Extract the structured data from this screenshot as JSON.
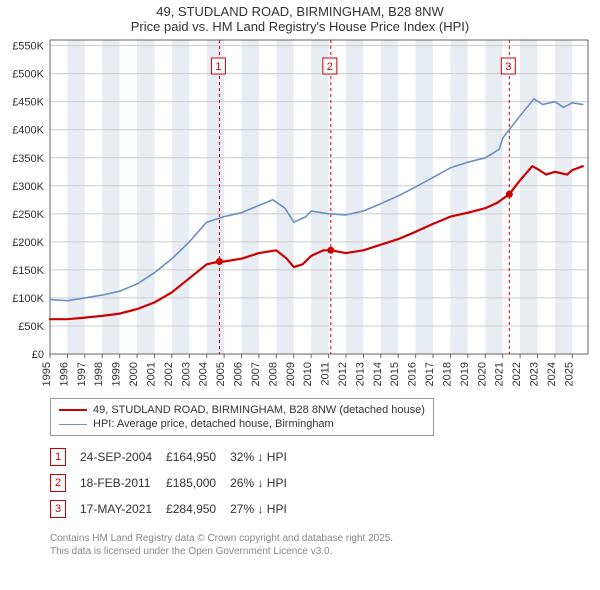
{
  "title": "49, STUDLAND ROAD, BIRMINGHAM, B28 8NW",
  "subtitle": "Price paid vs. HM Land Registry's House Price Index (HPI)",
  "chart": {
    "type": "line",
    "background_color": "#ffffff",
    "grid_color": "#cccccc",
    "band_color": "#e8edf3",
    "x_years": [
      1995,
      1996,
      1997,
      1998,
      1999,
      2000,
      2001,
      2002,
      2003,
      2004,
      2005,
      2006,
      2007,
      2008,
      2009,
      2010,
      2011,
      2012,
      2013,
      2014,
      2015,
      2016,
      2017,
      2018,
      2019,
      2020,
      2021,
      2022,
      2023,
      2024,
      2025
    ],
    "xlim": [
      1995,
      2025.9
    ],
    "ylim": [
      0,
      560000
    ],
    "ytick_step": 50000,
    "ytick_labels": [
      "£0",
      "£50K",
      "£100K",
      "£150K",
      "£200K",
      "£250K",
      "£300K",
      "£350K",
      "£400K",
      "£450K",
      "£500K",
      "£550K"
    ],
    "series": [
      {
        "name": "49, STUDLAND ROAD, BIRMINGHAM, B28 8NW (detached house)",
        "color": "#cc0000",
        "width": 2.2,
        "data": [
          [
            1995,
            62000
          ],
          [
            1996,
            62000
          ],
          [
            1997,
            65000
          ],
          [
            1998,
            68000
          ],
          [
            1999,
            72000
          ],
          [
            2000,
            80000
          ],
          [
            2001,
            92000
          ],
          [
            2002,
            110000
          ],
          [
            2003,
            135000
          ],
          [
            2004,
            160000
          ],
          [
            2004.73,
            164950
          ],
          [
            2005,
            165000
          ],
          [
            2006,
            170000
          ],
          [
            2007,
            180000
          ],
          [
            2008,
            185000
          ],
          [
            2008.6,
            170000
          ],
          [
            2009,
            155000
          ],
          [
            2009.5,
            160000
          ],
          [
            2010,
            175000
          ],
          [
            2010.7,
            185000
          ],
          [
            2011.13,
            185000
          ],
          [
            2012,
            180000
          ],
          [
            2013,
            185000
          ],
          [
            2014,
            195000
          ],
          [
            2015,
            205000
          ],
          [
            2016,
            218000
          ],
          [
            2017,
            232000
          ],
          [
            2018,
            245000
          ],
          [
            2019,
            252000
          ],
          [
            2020,
            260000
          ],
          [
            2020.7,
            270000
          ],
          [
            2021.38,
            284950
          ],
          [
            2022,
            310000
          ],
          [
            2022.7,
            335000
          ],
          [
            2023,
            330000
          ],
          [
            2023.5,
            320000
          ],
          [
            2024,
            325000
          ],
          [
            2024.7,
            320000
          ],
          [
            2025,
            328000
          ],
          [
            2025.6,
            335000
          ]
        ]
      },
      {
        "name": "HPI: Average price, detached house, Birmingham",
        "color": "#6a8fc5",
        "width": 1.6,
        "data": [
          [
            1995,
            97000
          ],
          [
            1996,
            95000
          ],
          [
            1997,
            100000
          ],
          [
            1998,
            105000
          ],
          [
            1999,
            112000
          ],
          [
            2000,
            125000
          ],
          [
            2001,
            145000
          ],
          [
            2002,
            170000
          ],
          [
            2003,
            200000
          ],
          [
            2004,
            235000
          ],
          [
            2005,
            245000
          ],
          [
            2006,
            252000
          ],
          [
            2007,
            265000
          ],
          [
            2007.8,
            275000
          ],
          [
            2008.5,
            260000
          ],
          [
            2009,
            235000
          ],
          [
            2009.7,
            245000
          ],
          [
            2010,
            255000
          ],
          [
            2011,
            250000
          ],
          [
            2012,
            248000
          ],
          [
            2013,
            255000
          ],
          [
            2014,
            268000
          ],
          [
            2015,
            282000
          ],
          [
            2016,
            298000
          ],
          [
            2017,
            315000
          ],
          [
            2018,
            332000
          ],
          [
            2019,
            342000
          ],
          [
            2020,
            350000
          ],
          [
            2020.8,
            365000
          ],
          [
            2021,
            385000
          ],
          [
            2022,
            425000
          ],
          [
            2022.8,
            455000
          ],
          [
            2023.3,
            445000
          ],
          [
            2024,
            450000
          ],
          [
            2024.5,
            440000
          ],
          [
            2025,
            448000
          ],
          [
            2025.6,
            445000
          ]
        ]
      }
    ],
    "markers": [
      {
        "id": "1",
        "year": 2004.73,
        "price": 164950,
        "color": "#cc0000"
      },
      {
        "id": "2",
        "year": 2011.13,
        "price": 185000,
        "color": "#cc0000"
      },
      {
        "id": "3",
        "year": 2021.38,
        "price": 284950,
        "color": "#cc0000"
      }
    ]
  },
  "legend": [
    {
      "label": "49, STUDLAND ROAD, BIRMINGHAM, B28 8NW (detached house)",
      "color": "#cc0000",
      "width": 2.2
    },
    {
      "label": "HPI: Average price, detached house, Birmingham",
      "color": "#6a8fc5",
      "width": 1.6
    }
  ],
  "sales": [
    {
      "id": "1",
      "date": "24-SEP-2004",
      "price": "£164,950",
      "delta": "32% ↓ HPI",
      "color": "#cc0000"
    },
    {
      "id": "2",
      "date": "18-FEB-2011",
      "price": "£185,000",
      "delta": "26% ↓ HPI",
      "color": "#cc0000"
    },
    {
      "id": "3",
      "date": "17-MAY-2021",
      "price": "£284,950",
      "delta": "27% ↓ HPI",
      "color": "#cc0000"
    }
  ],
  "footer_line1": "Contains HM Land Registry data © Crown copyright and database right 2025.",
  "footer_line2": "This data is licensed under the Open Government Licence v3.0."
}
